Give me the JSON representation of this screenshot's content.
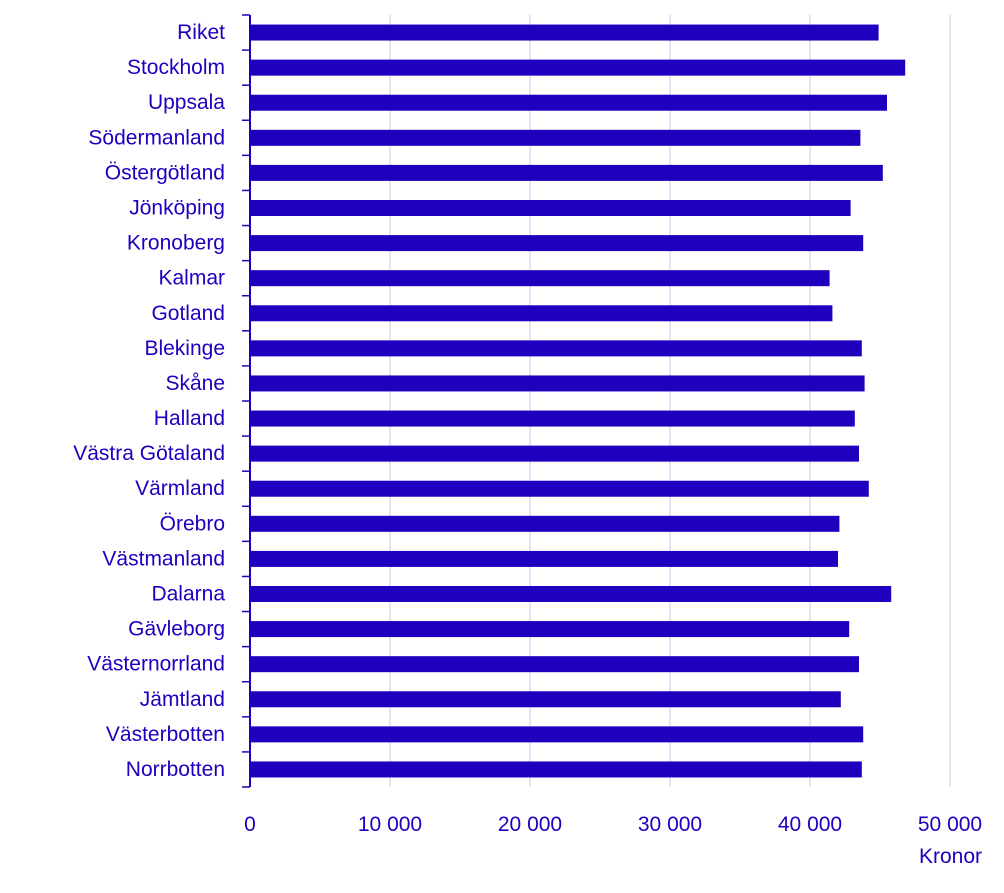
{
  "chart_data": {
    "type": "bar",
    "orientation": "horizontal",
    "title": "",
    "xlabel": "Kronor",
    "ylabel": "",
    "xlim": [
      0,
      50000
    ],
    "x_ticks": [
      0,
      10000,
      20000,
      30000,
      40000,
      50000
    ],
    "x_tick_labels": [
      "0",
      "10 000",
      "20 000",
      "30 000",
      "40 000",
      "50 000"
    ],
    "grid": "vertical",
    "legend": "none",
    "bar_color": "#1e00be",
    "grid_color": "#d2d2f0",
    "categories": [
      "Riket",
      "Stockholm",
      "Uppsala",
      "Södermanland",
      "Östergötland",
      "Jönköping",
      "Kronoberg",
      "Kalmar",
      "Gotland",
      "Blekinge",
      "Skåne",
      "Halland",
      "Västra Götaland",
      "Värmland",
      "Örebro",
      "Västmanland",
      "Dalarna",
      "Gävleborg",
      "Västernorrland",
      "Jämtland",
      "Västerbotten",
      "Norrbotten"
    ],
    "values": [
      44900,
      46800,
      45500,
      43600,
      45200,
      42900,
      43800,
      41400,
      41600,
      43700,
      43900,
      43200,
      43500,
      44200,
      42100,
      42000,
      45800,
      42800,
      43500,
      42200,
      43800,
      43700
    ]
  }
}
